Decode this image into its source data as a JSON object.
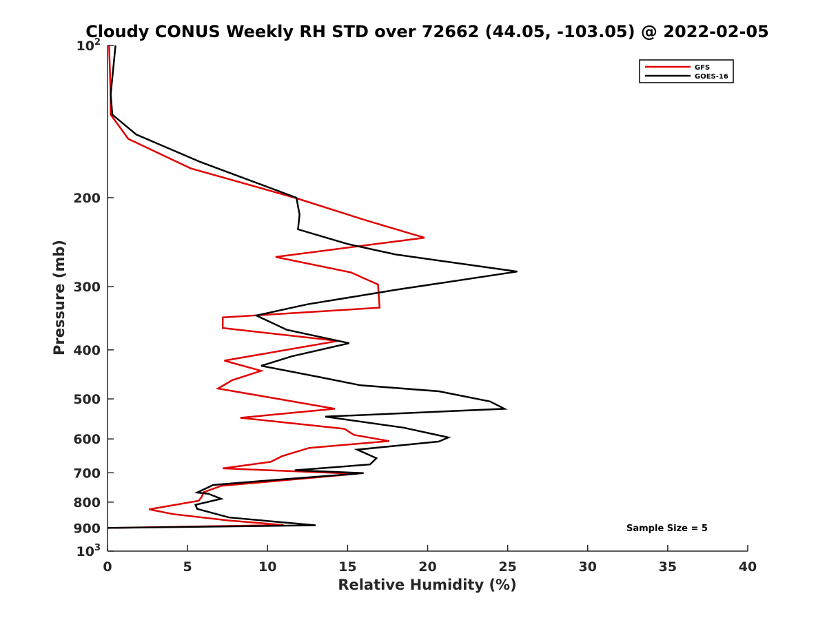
{
  "chart_data": {
    "type": "line",
    "title": "Cloudy CONUS Weekly RH STD over 72662 (44.05, -103.05) @ 2022-02-05",
    "xlabel": "Relative Humidity (%)",
    "ylabel": "Pressure (mb)",
    "xlim": [
      0,
      40
    ],
    "ylim": [
      100,
      1000
    ],
    "y_scale": "log",
    "y_reversed": true,
    "x_ticks": [
      "0",
      "5",
      "10",
      "15",
      "20",
      "25",
      "30",
      "35",
      "40"
    ],
    "y_ticks": [
      {
        "value": 100,
        "base": "10",
        "sup": "2"
      },
      {
        "value": 200,
        "base": "200",
        "sup": ""
      },
      {
        "value": 300,
        "base": "300",
        "sup": ""
      },
      {
        "value": 400,
        "base": "400",
        "sup": ""
      },
      {
        "value": 500,
        "base": "500",
        "sup": ""
      },
      {
        "value": 600,
        "base": "600",
        "sup": ""
      },
      {
        "value": 700,
        "base": "700",
        "sup": ""
      },
      {
        "value": 800,
        "base": "800",
        "sup": ""
      },
      {
        "value": 900,
        "base": "900",
        "sup": ""
      },
      {
        "value": 1000,
        "base": "10",
        "sup": "3"
      }
    ],
    "grid": false,
    "legend_position": "top-right",
    "annotation": "Sample Size = 5",
    "series": [
      {
        "name": "GFS",
        "color": "#e00000",
        "points": [
          [
            0.1,
            100
          ],
          [
            0.2,
            125
          ],
          [
            0.2,
            137
          ],
          [
            1.3,
            153
          ],
          [
            5.2,
            175
          ],
          [
            11.7,
            200
          ],
          [
            16.2,
            222
          ],
          [
            19.8,
            240
          ],
          [
            10.5,
            262
          ],
          [
            15.2,
            281
          ],
          [
            16.9,
            297
          ],
          [
            17.0,
            330
          ],
          [
            7.2,
            345
          ],
          [
            7.2,
            362
          ],
          [
            14.4,
            384
          ],
          [
            7.3,
            420
          ],
          [
            9.6,
            440
          ],
          [
            7.8,
            459
          ],
          [
            6.9,
            477
          ],
          [
            11.3,
            504
          ],
          [
            14.2,
            523
          ],
          [
            8.3,
            545
          ],
          [
            14.8,
            573
          ],
          [
            15.4,
            589
          ],
          [
            17.6,
            606
          ],
          [
            12.6,
            625
          ],
          [
            10.9,
            649
          ],
          [
            10.2,
            666
          ],
          [
            7.2,
            686
          ],
          [
            15.6,
            703
          ],
          [
            7.1,
            743
          ],
          [
            6.0,
            765
          ],
          [
            5.9,
            780
          ],
          [
            5.7,
            795
          ],
          [
            2.6,
            827
          ],
          [
            4.1,
            845
          ],
          [
            7.6,
            870
          ],
          [
            11.0,
            888
          ],
          [
            0.0,
            900
          ]
        ]
      },
      {
        "name": "GOES-16",
        "color": "#000000",
        "points": [
          [
            0.5,
            100
          ],
          [
            0.2,
            125
          ],
          [
            0.3,
            137
          ],
          [
            1.8,
            150
          ],
          [
            5.8,
            170
          ],
          [
            11.8,
            200
          ],
          [
            12.0,
            216
          ],
          [
            11.9,
            231
          ],
          [
            15.0,
            247
          ],
          [
            18.0,
            259
          ],
          [
            25.6,
            280
          ],
          [
            18.1,
            304
          ],
          [
            12.5,
            325
          ],
          [
            9.3,
            342
          ],
          [
            11.2,
            365
          ],
          [
            15.1,
            388
          ],
          [
            11.5,
            412
          ],
          [
            9.6,
            430
          ],
          [
            13.3,
            453
          ],
          [
            15.8,
            470
          ],
          [
            20.7,
            483
          ],
          [
            23.9,
            506
          ],
          [
            24.8,
            523
          ],
          [
            13.6,
            542
          ],
          [
            18.5,
            570
          ],
          [
            21.3,
            596
          ],
          [
            20.7,
            607
          ],
          [
            15.6,
            630
          ],
          [
            16.8,
            655
          ],
          [
            16.4,
            674
          ],
          [
            11.7,
            692
          ],
          [
            16.0,
            701
          ],
          [
            10.7,
            722
          ],
          [
            6.6,
            740
          ],
          [
            5.6,
            766
          ],
          [
            6.3,
            770
          ],
          [
            7.1,
            788
          ],
          [
            5.5,
            810
          ],
          [
            5.6,
            825
          ],
          [
            7.6,
            858
          ],
          [
            13.0,
            889
          ],
          [
            0.0,
            900
          ]
        ]
      }
    ]
  }
}
